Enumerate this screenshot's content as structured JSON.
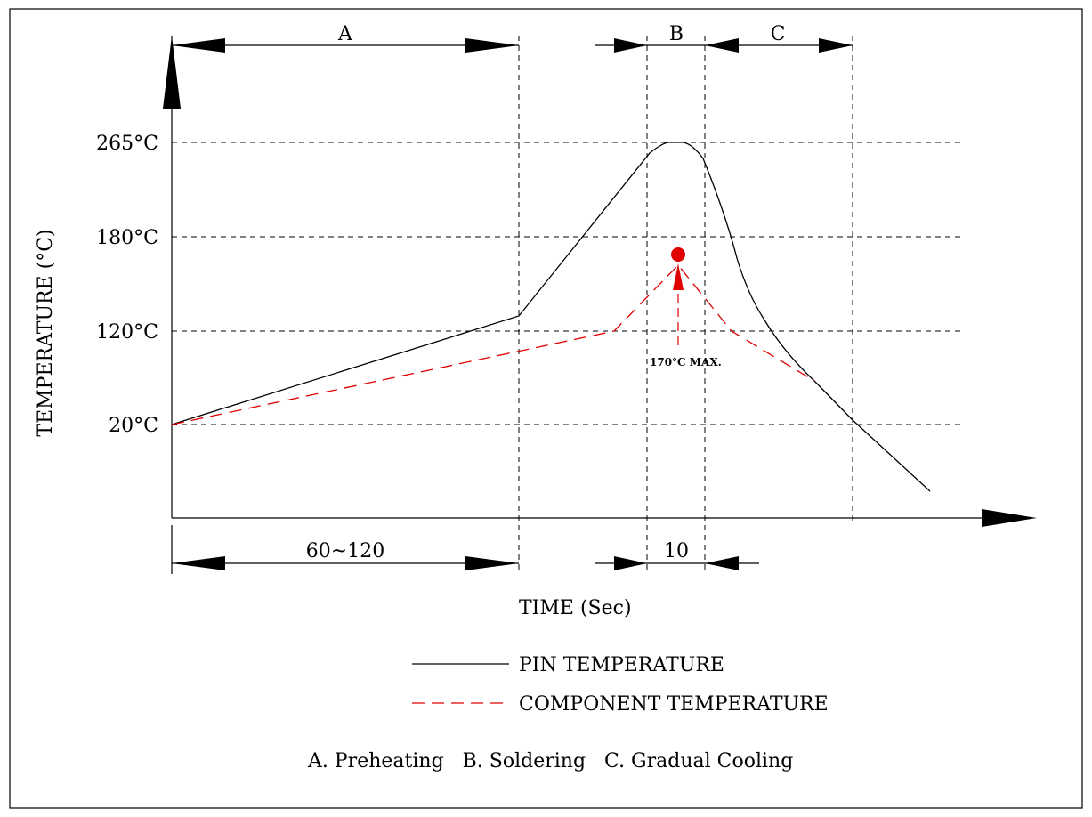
{
  "chart_data": {
    "type": "line",
    "title": "",
    "ylabel": "TEMPERATURE (°C)",
    "xlabel": "TIME (Sec)",
    "y_ticks": [
      "265°C",
      "180°C",
      "120°C",
      "20°C"
    ],
    "sections": [
      {
        "id": "A",
        "name": "A. Preheating"
      },
      {
        "id": "B",
        "name": "B. Soldering"
      },
      {
        "id": "C",
        "name": "C. Gradual Cooling"
      }
    ],
    "durations": {
      "preheating": "60~120",
      "soldering": "10"
    },
    "component_max_label": "170°C  MAX.",
    "component_max_value": 170,
    "series": [
      {
        "name": "PIN TEMPERATURE",
        "color": "#000000",
        "style": "solid"
      },
      {
        "name": "COMPONENT TEMPERATURE",
        "color": "#e00000",
        "style": "dashed"
      }
    ],
    "grid": true
  },
  "notes": "A. Preheating   B. Soldering   C. Gradual Cooling"
}
